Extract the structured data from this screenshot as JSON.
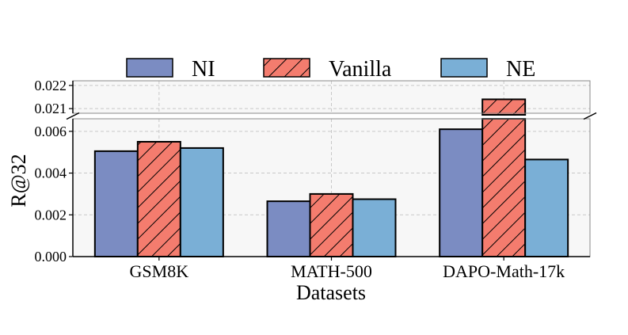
{
  "chart_data": {
    "type": "bar",
    "xlabel": "Datasets",
    "ylabel": "R@32",
    "categories": [
      "GSM8K",
      "MATH-500",
      "DAPO-Math-17k"
    ],
    "series": [
      {
        "name": "NI",
        "values": [
          0.00505,
          0.00265,
          0.0061
        ],
        "color": "#7b8cc2",
        "hatch": false
      },
      {
        "name": "Vanilla",
        "values": [
          0.0055,
          0.003,
          0.0214
        ],
        "color": "#f47c6e",
        "hatch": true
      },
      {
        "name": "NE",
        "values": [
          0.0052,
          0.00275,
          0.00465
        ],
        "color": "#7aafd6",
        "hatch": false
      }
    ],
    "ylim_lower": [
      0,
      0.0066
    ],
    "ylim_upper": [
      0.0208,
      0.0222
    ],
    "yticks_lower": [
      "0.000",
      "0.002",
      "0.004",
      "0.006"
    ],
    "yticks_upper": [
      "0.021",
      "0.022"
    ],
    "broken_axis": true,
    "grid": true,
    "legend": "top"
  }
}
